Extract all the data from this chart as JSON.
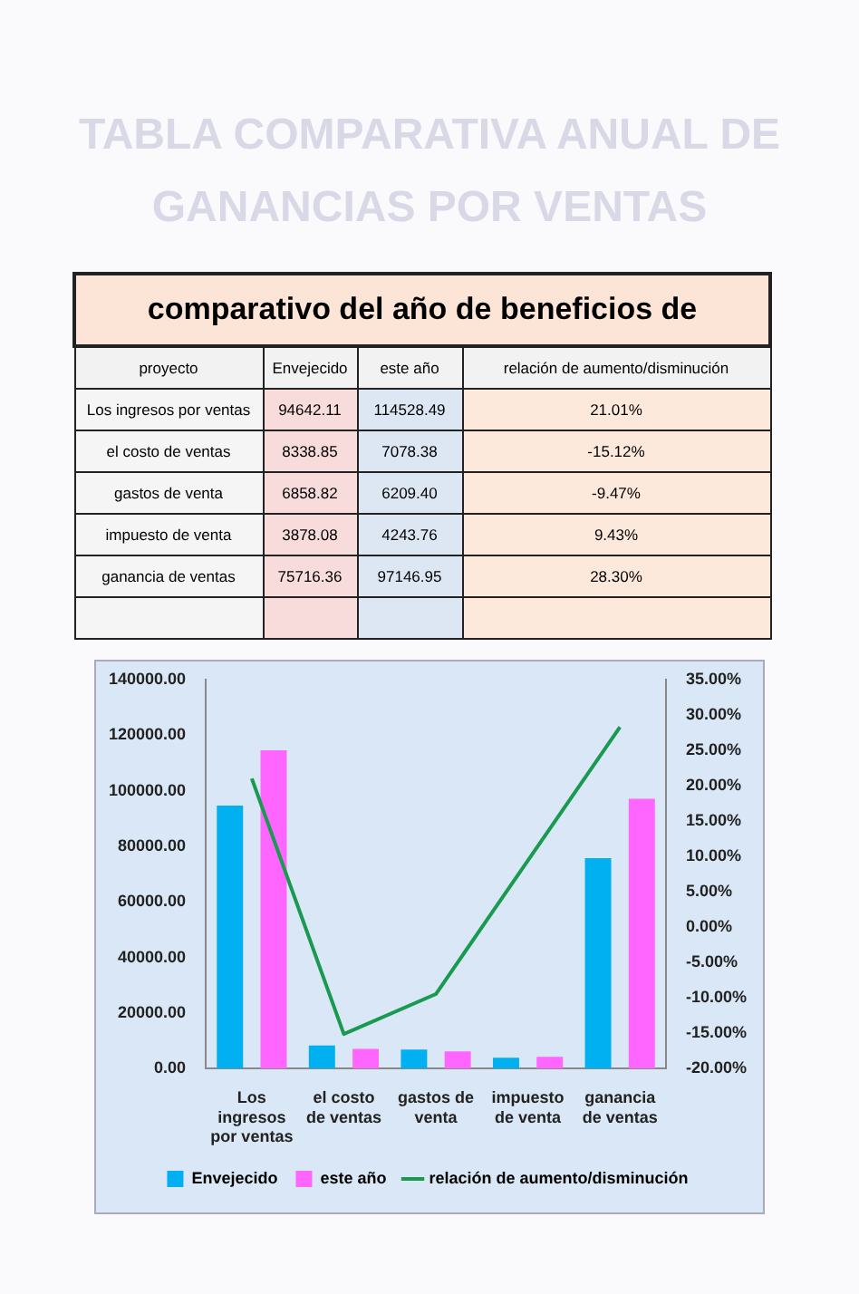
{
  "chart_data": {
    "type": "bar",
    "title": "TABLA COMPARATIVA ANUAL DE GANANCIAS POR VENTAS",
    "annotations": [
      "comparativo del año de beneficios de",
      "proyecto",
      "94642.11",
      "114528.49",
      "21.01%",
      "8338.85",
      "7078.38",
      "-15.12%",
      "6858.82",
      "6209.40",
      "-9.47%",
      "3878.08",
      "4243.76",
      "9.43%",
      "75716.36",
      "97146.95",
      "28.30%"
    ],
    "categories": [
      "Los ingresos por ventas",
      "el costo de ventas",
      "gastos de venta",
      "impuesto de venta",
      "ganancia de ventas"
    ],
    "series": [
      {
        "name": "Envejecido",
        "color": "#00b0f0",
        "values": [
          94642.11,
          8338.85,
          6858.82,
          3878.08,
          75716.36
        ]
      },
      {
        "name": "este año",
        "color": "#ff66ff",
        "values": [
          114528.49,
          7078.38,
          6209.4,
          4243.76,
          97146.95
        ]
      },
      {
        "name": "relación de aumento/disminución",
        "type": "line",
        "axis": "y2",
        "color": "#1a9a50",
        "values": [
          21.01,
          -15.12,
          -9.47,
          9.43,
          28.3
        ]
      }
    ],
    "ylim": [
      0,
      140000
    ],
    "yticks": [
      {
        "value": 0,
        "label": "0.00"
      },
      {
        "value": 20000,
        "label": "20000.00"
      },
      {
        "value": 40000,
        "label": "40000.00"
      },
      {
        "value": 60000,
        "label": "60000.00"
      },
      {
        "value": 80000,
        "label": "80000.00"
      },
      {
        "value": 100000,
        "label": "100000.00"
      },
      {
        "value": 120000,
        "label": "120000.00"
      },
      {
        "value": 140000,
        "label": "140000.00"
      }
    ],
    "y2lim": [
      -20,
      35
    ],
    "y2ticks": [
      {
        "value": -20,
        "label": "-20.00%"
      },
      {
        "value": -15,
        "label": "-15.00%"
      },
      {
        "value": -10,
        "label": "-10.00%"
      },
      {
        "value": -5,
        "label": "-5.00%"
      },
      {
        "value": 0,
        "label": "0.00%"
      },
      {
        "value": 5,
        "label": "5.00%"
      },
      {
        "value": 10,
        "label": "10.00%"
      },
      {
        "value": 15,
        "label": "15.00%"
      },
      {
        "value": 20,
        "label": "20.00%"
      },
      {
        "value": 25,
        "label": "25.00%"
      },
      {
        "value": 30,
        "label": "30.00%"
      },
      {
        "value": 35,
        "label": "35.00%"
      }
    ],
    "grid": false,
    "legend": "bottom",
    "marker": "none",
    "line_style": "solid"
  }
}
